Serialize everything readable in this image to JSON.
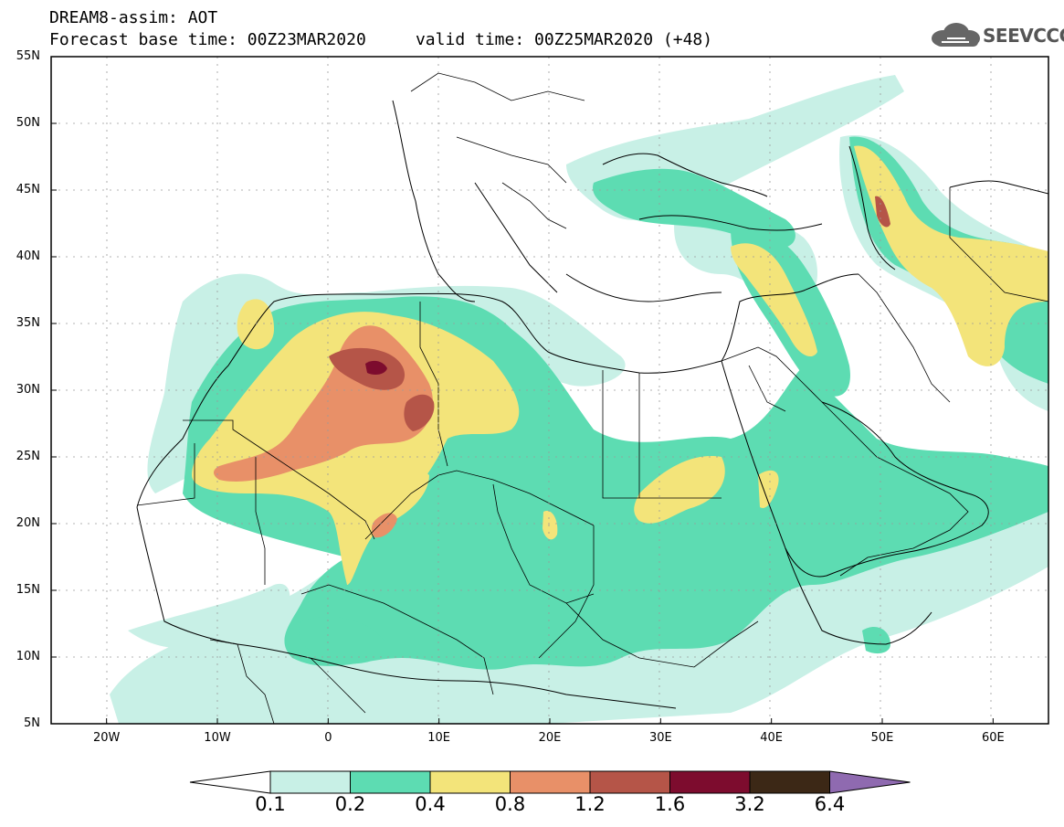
{
  "title": {
    "line1": "DREAM8-assim: AOT",
    "line2": "Forecast base time: 00Z23MAR2020     valid time: 00Z25MAR2020 (+48)"
  },
  "logo": {
    "icon": "cloud-icon",
    "text": "SEEVCCC"
  },
  "chart_data": {
    "type": "heatmap",
    "title": "DREAM8-assim: AOT",
    "subtitle": "Forecast base time: 00Z23MAR2020     valid time: 00Z25MAR2020 (+48)",
    "xlim": [
      -25,
      65
    ],
    "ylim": [
      5,
      55
    ],
    "lat_ticks": [
      "55N",
      "50N",
      "45N",
      "40N",
      "35N",
      "30N",
      "25N",
      "20N",
      "15N",
      "10N",
      "5N"
    ],
    "lon_ticks": [
      "20W",
      "10W",
      "0",
      "10E",
      "20E",
      "30E",
      "40E",
      "50E",
      "60E"
    ],
    "lat_values": [
      55,
      50,
      45,
      40,
      35,
      30,
      25,
      20,
      15,
      10,
      5
    ],
    "lon_values": [
      -20,
      -10,
      0,
      10,
      20,
      30,
      40,
      50,
      60
    ],
    "grid": true,
    "legend": "bottom",
    "levels": [
      "0.1",
      "0.2",
      "0.4",
      "0.8",
      "1.2",
      "1.6",
      "3.2",
      "6.4"
    ],
    "level_colors": [
      "#c8f0e6",
      "#5ddcb2",
      "#f3e47a",
      "#e89068",
      "#b55548",
      "#7d0c2e",
      "#3c2816",
      "#8f6ab0"
    ]
  }
}
